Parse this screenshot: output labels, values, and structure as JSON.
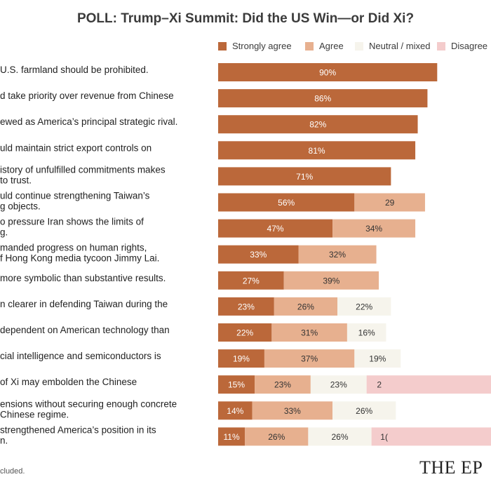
{
  "chart_data": {
    "type": "bar",
    "orientation": "horizontal",
    "stacked": true,
    "title": "POLL: Trump–Xi Summit: Did the US Win—or Did Xi?",
    "legend_position": "top",
    "categories": [
      "U.S. farmland should be prohibited.",
      "d take priority over revenue from Chinese",
      "ewed as America’s principal strategic rival.",
      "uld maintain strict export controls on",
      "istory of unfulfilled commitments makes\nto trust.",
      "uld continue strengthening Taiwan’s\ng objects.",
      "o pressure Iran shows the limits of\ng.",
      "manded progress on human rights,\nf Hong Kong media tycoon Jimmy Lai.",
      "more symbolic than substantive results.",
      "n clearer in defending Taiwan during the",
      "dependent on American technology than",
      "cial intelligence and semiconductors is",
      "of Xi may embolden the Chinese",
      "ensions without securing enough concrete\nChinese regime.",
      "strengthened America’s position in its\nn."
    ],
    "series": [
      {
        "name": "Strongly agree",
        "color": "#bb683a",
        "values": [
          90,
          86,
          82,
          81,
          71,
          56,
          47,
          33,
          27,
          23,
          22,
          19,
          15,
          14,
          11
        ],
        "labels": [
          "90%",
          "86%",
          "82%",
          "81%",
          "71%",
          "56%",
          "47%",
          "33%",
          "27%",
          "23%",
          "22%",
          "19%",
          "15%",
          "14%",
          "11%"
        ]
      },
      {
        "name": "Agree",
        "color": "#e7b08f",
        "values": [
          null,
          null,
          null,
          null,
          null,
          29,
          34,
          32,
          39,
          26,
          31,
          37,
          23,
          33,
          26
        ],
        "labels": [
          "",
          "",
          "",
          "",
          "",
          "29",
          "34%",
          "32%",
          "39%",
          "26%",
          "31%",
          "37%",
          "23%",
          "33%",
          "26%"
        ]
      },
      {
        "name": "Neutral / mixed",
        "color": "#f6f4ec",
        "values": [
          null,
          null,
          null,
          null,
          null,
          null,
          null,
          null,
          null,
          22,
          16,
          19,
          23,
          26,
          26
        ],
        "labels": [
          "",
          "",
          "",
          "",
          "",
          "",
          "",
          "",
          "",
          "22%",
          "16%",
          "19%",
          "23%",
          "26%",
          "26%"
        ]
      },
      {
        "name": "Disagree",
        "color": "#f4cccc",
        "values": [
          null,
          null,
          null,
          null,
          null,
          null,
          null,
          null,
          null,
          null,
          null,
          null,
          null,
          null,
          null
        ],
        "labels": [
          "",
          "",
          "",
          "",
          "",
          "",
          "",
          "",
          "",
          "",
          "",
          "",
          "2",
          "",
          "1("
        ]
      }
    ],
    "footnote": "cluded.",
    "brand": "THE EP"
  }
}
